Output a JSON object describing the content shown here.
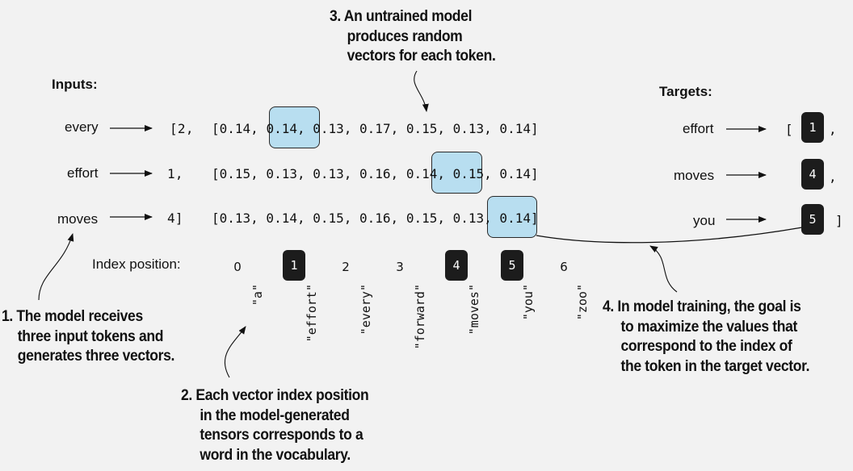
{
  "inputs_title": "Inputs:",
  "targets_title": "Targets:",
  "inputs": [
    {
      "word": "every",
      "id": "[2,"
    },
    {
      "word": "effort",
      "id": "1,"
    },
    {
      "word": "moves",
      "id": "4]"
    }
  ],
  "vectors": [
    {
      "open": "[0.14, ",
      "hl": "0.14,",
      "rest": " 0.13, 0.17, 0.15, 0.13, 0.14]"
    },
    {
      "pre": "[0.15, 0.13, 0.13, 0.16, ",
      "hl": "0.14,",
      "rest": " 0.15, 0.14]"
    },
    {
      "pre": "[0.13, 0.14, 0.15, 0.16, 0.15, ",
      "hl": "0.13,",
      "rest": " 0.14]"
    }
  ],
  "targets": [
    {
      "word": "effort",
      "open": "[",
      "id": "1",
      "sep": ","
    },
    {
      "word": "moves",
      "id": "4",
      "sep": ","
    },
    {
      "word": "you",
      "id": "5",
      "sep": "]"
    }
  ],
  "index_label": "Index position:",
  "vocab": [
    {
      "index": "0",
      "word": "\"a\""
    },
    {
      "index": "1",
      "word": "\"effort\""
    },
    {
      "index": "2",
      "word": "\"every\""
    },
    {
      "index": "3",
      "word": "\"forward\""
    },
    {
      "index": "4",
      "word": "\"moves\""
    },
    {
      "index": "5",
      "word": "\"you\""
    },
    {
      "index": "6",
      "word": "\"zoo\""
    }
  ],
  "callout1": [
    "1. The model receives",
    "three input tokens and",
    "generates three vectors."
  ],
  "callout2": [
    "2. Each vector index position",
    "in the model-generated",
    "tensors corresponds to a",
    "word in the vocabulary."
  ],
  "callout3": [
    "3. An untrained model",
    "produces random",
    "vectors for each token."
  ],
  "callout4": [
    "4. In model training, the goal is",
    "to maximize the values that",
    "correspond to the index of",
    "the token in the target vector."
  ],
  "colors": {
    "highlight": "#b8def0",
    "block": "#1c1c1c",
    "background": "#f2f2f2"
  }
}
